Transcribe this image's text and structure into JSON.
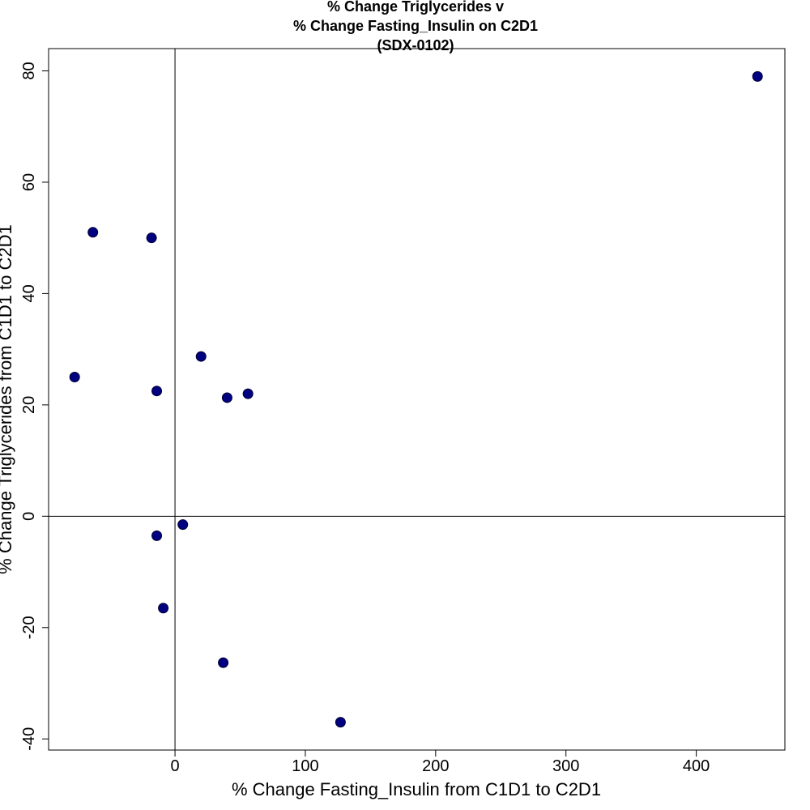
{
  "chart_data": {
    "type": "scatter",
    "title_lines": [
      "% Change Triglycerides v",
      "% Change Fasting_Insulin on C2D1",
      "(SDX-0102)"
    ],
    "xlabel": "% Change Fasting_Insulin from C1D1 to C2D1",
    "ylabel": "% Change Triglycerides from C1D1 to C2D1",
    "xlim": [
      -97,
      468
    ],
    "ylim": [
      -42,
      84
    ],
    "x_ticks": [
      0,
      100,
      200,
      300,
      400
    ],
    "y_ticks": [
      -40,
      -20,
      0,
      20,
      40,
      60,
      80
    ],
    "reference_lines": {
      "x": 0,
      "y": 0
    },
    "grid": false,
    "marker_color": "#000080",
    "points": [
      {
        "x": -77,
        "y": 25
      },
      {
        "x": -63,
        "y": 51
      },
      {
        "x": -18,
        "y": 50
      },
      {
        "x": -14,
        "y": 22.5
      },
      {
        "x": -14,
        "y": -3.5
      },
      {
        "x": -9,
        "y": -16.5
      },
      {
        "x": 6,
        "y": -1.5
      },
      {
        "x": 20,
        "y": 28.7
      },
      {
        "x": 37,
        "y": -26.3
      },
      {
        "x": 40,
        "y": 21.3
      },
      {
        "x": 56,
        "y": 22
      },
      {
        "x": 127,
        "y": -37
      },
      {
        "x": 447,
        "y": 79
      }
    ]
  }
}
